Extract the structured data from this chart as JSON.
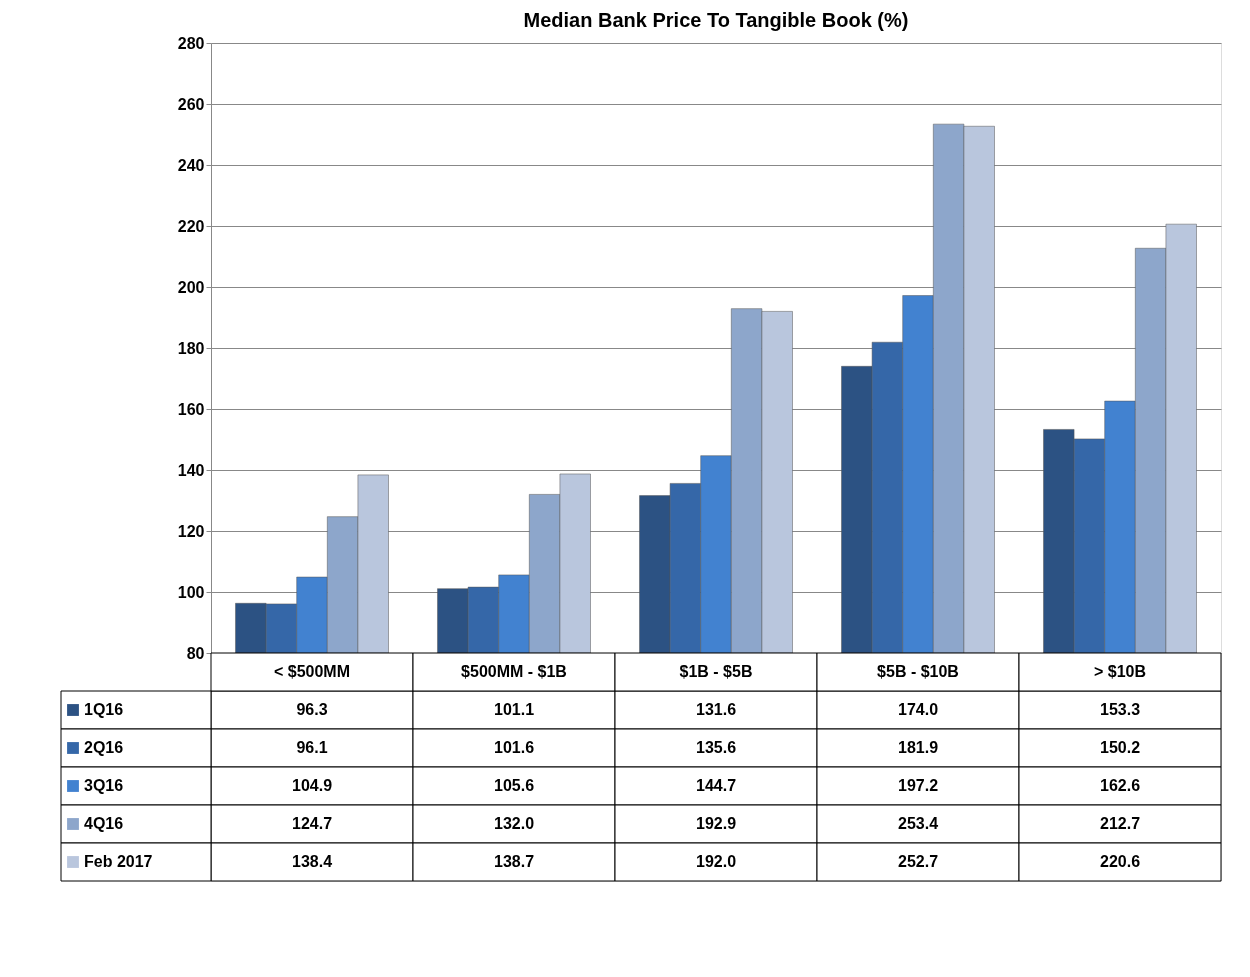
{
  "chart_data": {
    "type": "bar",
    "title": "Median Bank Price To Tangible Book (%)",
    "categories": [
      "< $500MM",
      "$500MM - $1B",
      "$1B - $5B",
      "$5B - $10B",
      "> $10B"
    ],
    "series": [
      {
        "name": "1Q16",
        "color": "#2c5283",
        "values": [
          96.3,
          101.1,
          131.6,
          174.0,
          153.3
        ],
        "value_labels": [
          "96.3",
          "101.1",
          "131.6",
          "174.0",
          "153.3"
        ]
      },
      {
        "name": "2Q16",
        "color": "#3567a8",
        "values": [
          96.1,
          101.6,
          135.6,
          181.9,
          150.2
        ],
        "value_labels": [
          "96.1",
          "101.6",
          "135.6",
          "181.9",
          "150.2"
        ]
      },
      {
        "name": "3Q16",
        "color": "#4282d0",
        "values": [
          104.9,
          105.6,
          144.7,
          197.2,
          162.6
        ],
        "value_labels": [
          "104.9",
          "105.6",
          "144.7",
          "197.2",
          "162.6"
        ]
      },
      {
        "name": "4Q16",
        "color": "#8da6cb",
        "values": [
          124.7,
          132.0,
          192.9,
          253.4,
          212.7
        ],
        "value_labels": [
          "124.7",
          "132.0",
          "192.9",
          "253.4",
          "212.7"
        ]
      },
      {
        "name": "Feb 2017",
        "color": "#b9c6dd",
        "values": [
          138.4,
          138.7,
          192.0,
          252.7,
          220.6
        ],
        "value_labels": [
          "138.4",
          "138.7",
          "192.0",
          "252.7",
          "220.6"
        ]
      }
    ],
    "ylim": [
      80,
      280
    ],
    "yticks": [
      80,
      100,
      120,
      140,
      160,
      180,
      200,
      220,
      240,
      260,
      280
    ],
    "grid": "y",
    "legend": "bottom"
  }
}
